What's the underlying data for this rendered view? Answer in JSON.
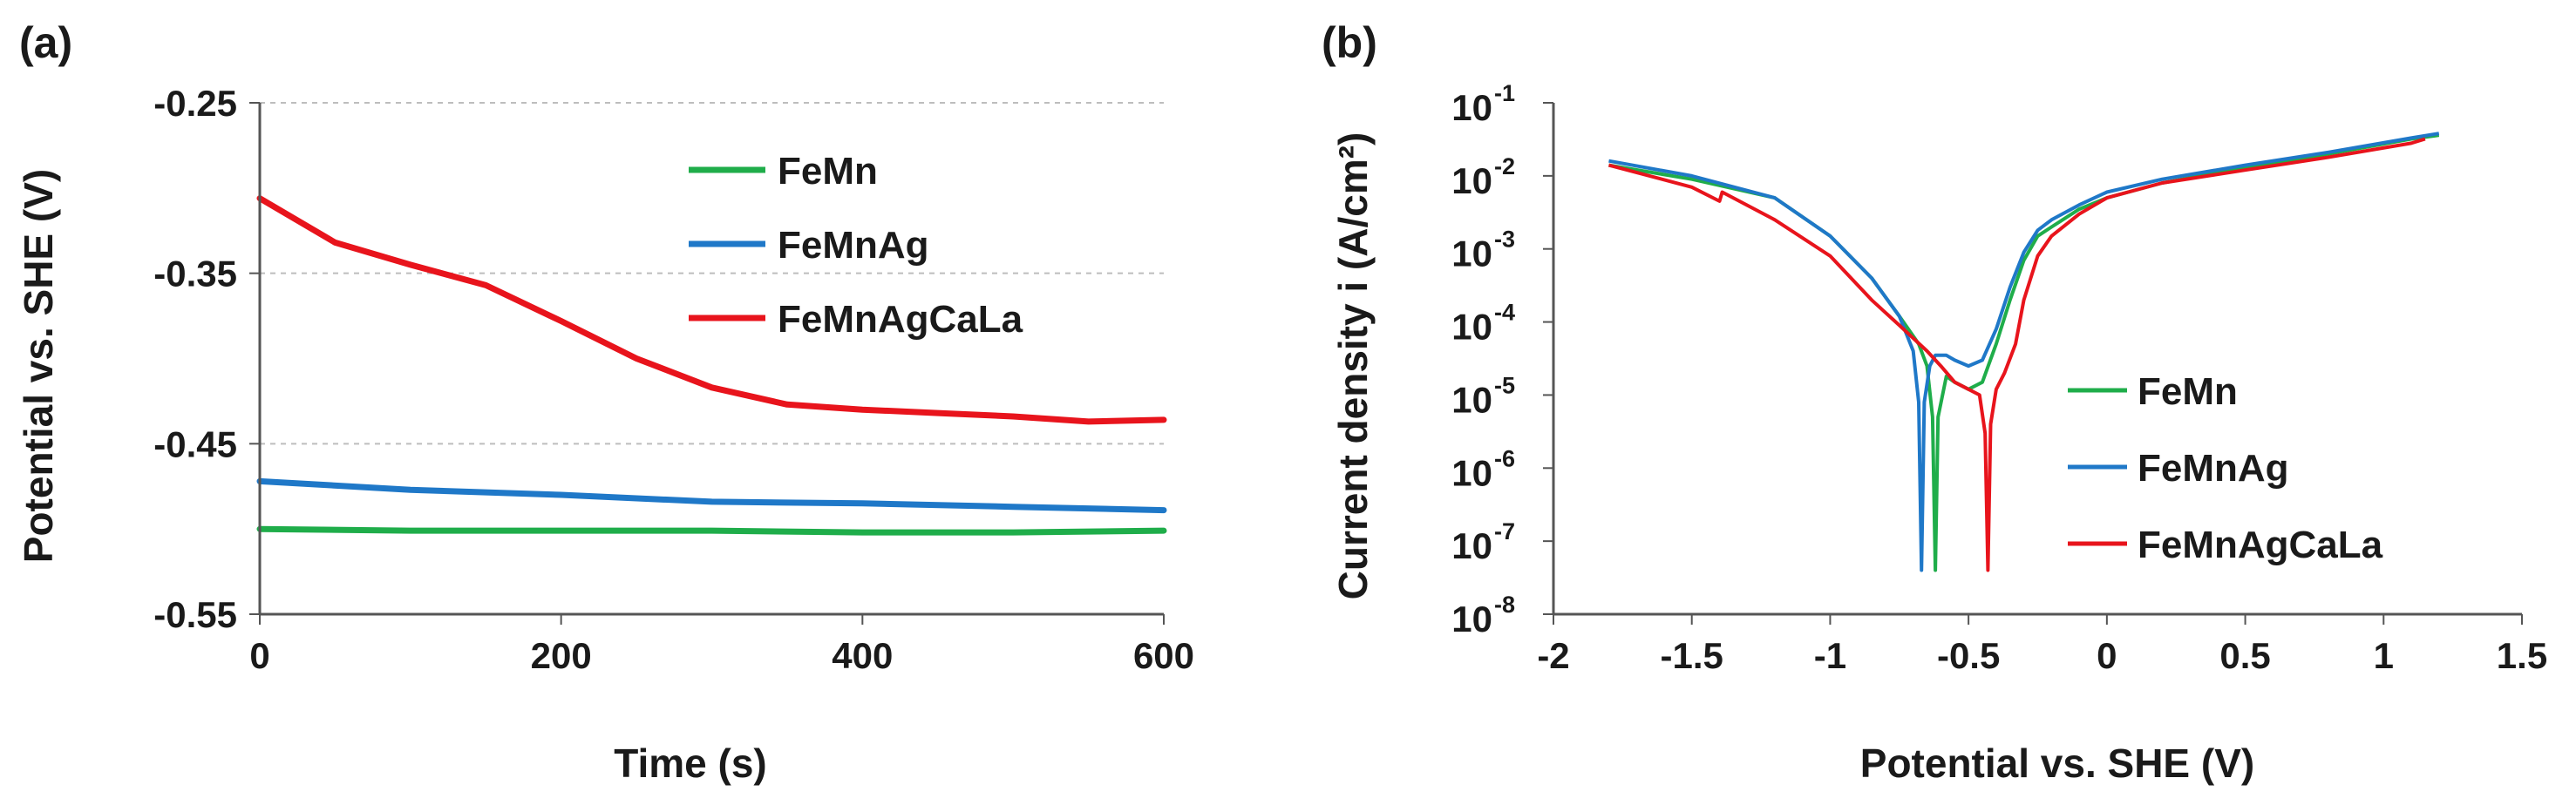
{
  "chart_data": [
    {
      "panel_label": "(a)",
      "type": "line",
      "xlabel": "Time (s)",
      "ylabel": "Potential vs. SHE (V)",
      "xlim": [
        0,
        600
      ],
      "ylim": [
        -0.55,
        -0.25
      ],
      "xticks": [
        0,
        200,
        400,
        600
      ],
      "xtick_labels": [
        "0",
        "200",
        "400",
        "600"
      ],
      "yticks": [
        -0.25,
        -0.35,
        -0.45,
        -0.55
      ],
      "ytick_labels": [
        "-0.25",
        "-0.35",
        "-0.45",
        "-0.55"
      ],
      "grid": "horizontal dashed",
      "legend_position": "upper-right",
      "series": [
        {
          "name": "FeMn",
          "color": "#1fad4a",
          "x": [
            0,
            100,
            200,
            300,
            400,
            500,
            600
          ],
          "y": [
            -0.5,
            -0.501,
            -0.501,
            -0.501,
            -0.502,
            -0.502,
            -0.501
          ]
        },
        {
          "name": "FeMnAg",
          "color": "#1f78c8",
          "x": [
            0,
            100,
            200,
            300,
            400,
            500,
            600
          ],
          "y": [
            -0.472,
            -0.477,
            -0.48,
            -0.484,
            -0.485,
            -0.487,
            -0.489
          ]
        },
        {
          "name": "FeMnAgCaLa",
          "color": "#e8141c",
          "x": [
            0,
            50,
            100,
            150,
            200,
            250,
            300,
            350,
            400,
            450,
            500,
            550,
            600
          ],
          "y": [
            -0.306,
            -0.332,
            -0.345,
            -0.357,
            -0.378,
            -0.4,
            -0.417,
            -0.427,
            -0.43,
            -0.432,
            -0.434,
            -0.437,
            -0.436
          ]
        }
      ]
    },
    {
      "panel_label": "(b)",
      "type": "line",
      "xlabel": "Potential vs. SHE (V)",
      "ylabel": "Current density i (A/cm²)",
      "yscale": "log",
      "xlim": [
        -2,
        1.5
      ],
      "ylim_exponent": [
        -8,
        -1
      ],
      "xticks": [
        -2,
        -1.5,
        -1,
        -0.5,
        0,
        0.5,
        1,
        1.5
      ],
      "xtick_labels": [
        "-2",
        "-1.5",
        "-1",
        "-0.5",
        "0",
        "0.5",
        "1",
        "1.5"
      ],
      "ytick_exponents": [
        -1,
        -2,
        -3,
        -4,
        -5,
        -6,
        -7,
        -8
      ],
      "ytick_base": "10",
      "ytick_exponent_labels": [
        "-1",
        "-2",
        "-3",
        "-4",
        "-5",
        "-6",
        "-7",
        "-8"
      ],
      "legend_position": "lower-right",
      "series": [
        {
          "name": "FeMn",
          "color": "#1fad4a",
          "x": [
            -1.8,
            -1.5,
            -1.2,
            -1.0,
            -0.85,
            -0.75,
            -0.68,
            -0.65,
            -0.63,
            -0.62,
            -0.61,
            -0.58,
            -0.55,
            -0.5,
            -0.45,
            -0.4,
            -0.35,
            -0.3,
            -0.25,
            -0.2,
            -0.1,
            0.0,
            0.2,
            0.5,
            0.8,
            1.1,
            1.2
          ],
          "y": [
            0.014,
            0.009,
            0.005,
            0.0015,
            0.0004,
            0.00012,
            5e-05,
            2.5e-05,
            5e-06,
            4e-08,
            5e-06,
            1.8e-05,
            1.5e-05,
            1.2e-05,
            1.5e-05,
            5e-05,
            0.0002,
            0.0007,
            0.0015,
            0.002,
            0.0035,
            0.005,
            0.008,
            0.013,
            0.02,
            0.032,
            0.036
          ]
        },
        {
          "name": "FeMnAg",
          "color": "#1f78c8",
          "x": [
            -1.8,
            -1.5,
            -1.2,
            -1.0,
            -0.85,
            -0.75,
            -0.7,
            -0.68,
            -0.67,
            -0.66,
            -0.64,
            -0.62,
            -0.58,
            -0.55,
            -0.5,
            -0.45,
            -0.4,
            -0.35,
            -0.3,
            -0.25,
            -0.2,
            -0.1,
            0.0,
            0.2,
            0.5,
            0.8,
            1.1,
            1.2
          ],
          "y": [
            0.016,
            0.01,
            0.005,
            0.0015,
            0.0004,
            0.00012,
            4e-05,
            8e-06,
            4e-08,
            8e-06,
            2.5e-05,
            3.5e-05,
            3.5e-05,
            3e-05,
            2.5e-05,
            3e-05,
            8e-05,
            0.0003,
            0.0009,
            0.0018,
            0.0025,
            0.004,
            0.006,
            0.009,
            0.014,
            0.021,
            0.033,
            0.038
          ]
        },
        {
          "name": "FeMnAgCaLa",
          "color": "#e8141c",
          "x": [
            -1.8,
            -1.5,
            -1.4,
            -1.39,
            -1.2,
            -1.0,
            -0.85,
            -0.75,
            -0.65,
            -0.6,
            -0.55,
            -0.5,
            -0.46,
            -0.44,
            -0.43,
            -0.42,
            -0.4,
            -0.37,
            -0.33,
            -0.3,
            -0.25,
            -0.2,
            -0.1,
            0.0,
            0.2,
            0.5,
            0.8,
            1.1,
            1.15
          ],
          "y": [
            0.014,
            0.007,
            0.0045,
            0.006,
            0.0025,
            0.0008,
            0.0002,
            9e-05,
            4e-05,
            2.5e-05,
            1.5e-05,
            1.2e-05,
            1e-05,
            3e-06,
            4e-08,
            4e-06,
            1.2e-05,
            2e-05,
            5e-05,
            0.0002,
            0.0008,
            0.0015,
            0.003,
            0.005,
            0.008,
            0.012,
            0.018,
            0.028,
            0.032
          ]
        }
      ]
    }
  ]
}
